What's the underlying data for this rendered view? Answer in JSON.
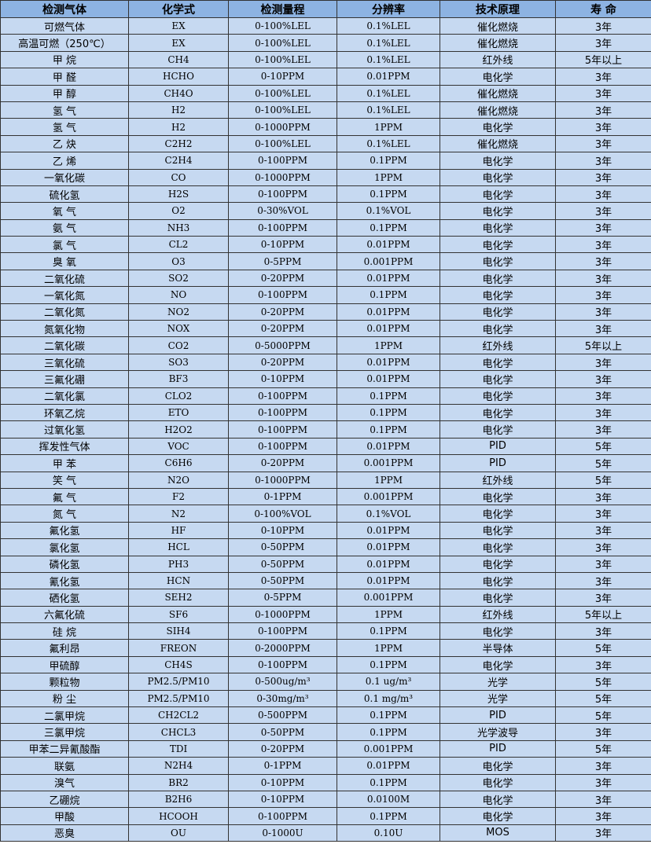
{
  "headers": [
    "检测气体",
    "化学式",
    "检测量程",
    "分辨率",
    "技术原理",
    "寿 命"
  ],
  "rows": [
    [
      "可燃气体",
      "EX",
      "0-100%LEL",
      "0.1%LEL",
      "催化燃烧",
      "3年"
    ],
    [
      "高温可燃（250℃）",
      "EX",
      "0-100%LEL",
      "0.1%LEL",
      "催化燃烧",
      "3年"
    ],
    [
      "甲 烷",
      "CH4",
      "0-100%LEL",
      "0.1%LEL",
      "红外线",
      "5年以上"
    ],
    [
      "甲 醛",
      "HCHO",
      "0-10PPM",
      "0.01PPM",
      "电化学",
      "3年"
    ],
    [
      "甲 醇",
      "CH4O",
      "0-100%LEL",
      "0.1%LEL",
      "催化燃烧",
      "3年"
    ],
    [
      "氢 气",
      "H2",
      "0-100%LEL",
      "0.1%LEL",
      "催化燃烧",
      "3年"
    ],
    [
      "氢 气",
      "H2",
      "0-1000PPM",
      "1PPM",
      "电化学",
      "3年"
    ],
    [
      "乙 炔",
      "C2H2",
      "0-100%LEL",
      "0.1%LEL",
      "催化燃烧",
      "3年"
    ],
    [
      "乙 烯",
      "C2H4",
      "0-100PPM",
      "0.1PPM",
      "电化学",
      "3年"
    ],
    [
      "一氧化碳",
      "CO",
      "0-1000PPM",
      "1PPM",
      "电化学",
      "3年"
    ],
    [
      "硫化氢",
      "H2S",
      "0-100PPM",
      "0.1PPM",
      "电化学",
      "3年"
    ],
    [
      "氧 气",
      "O2",
      "0-30%VOL",
      "0.1%VOL",
      "电化学",
      "3年"
    ],
    [
      "氨 气",
      "NH3",
      "0-100PPM",
      "0.1PPM",
      "电化学",
      "3年"
    ],
    [
      "氯 气",
      "CL2",
      "0-10PPM",
      "0.01PPM",
      "电化学",
      "3年"
    ],
    [
      "臭 氧",
      "O3",
      "0-5PPM",
      "0.001PPM",
      "电化学",
      "3年"
    ],
    [
      "二氧化硫",
      "SO2",
      "0-20PPM",
      "0.01PPM",
      "电化学",
      "3年"
    ],
    [
      "一氧化氮",
      "NO",
      "0-100PPM",
      "0.1PPM",
      "电化学",
      "3年"
    ],
    [
      "二氧化氮",
      "NO2",
      "0-20PPM",
      "0.01PPM",
      "电化学",
      "3年"
    ],
    [
      "氮氧化物",
      "NOX",
      "0-20PPM",
      "0.01PPM",
      "电化学",
      "3年"
    ],
    [
      "二氧化碳",
      "CO2",
      "0-5000PPM",
      "1PPM",
      "红外线",
      "5年以上"
    ],
    [
      "三氧化硫",
      "SO3",
      "0-20PPM",
      "0.01PPM",
      "电化学",
      "3年"
    ],
    [
      "三氟化硼",
      "BF3",
      "0-10PPM",
      "0.01PPM",
      "电化学",
      "3年"
    ],
    [
      "二氧化氯",
      "CLO2",
      "0-100PPM",
      "0.1PPM",
      "电化学",
      "3年"
    ],
    [
      "环氧乙烷",
      "ETO",
      "0-100PPM",
      "0.1PPM",
      "电化学",
      "3年"
    ],
    [
      "过氧化氢",
      "H2O2",
      "0-100PPM",
      "0.1PPM",
      "电化学",
      "3年"
    ],
    [
      "挥发性气体",
      "VOC",
      "0-100PPM",
      "0.01PPM",
      "PID",
      "5年"
    ],
    [
      "甲 苯",
      "C6H6",
      "0-20PPM",
      "0.001PPM",
      "PID",
      "5年"
    ],
    [
      "笑 气",
      "N2O",
      "0-1000PPM",
      "1PPM",
      "红外线",
      "5年"
    ],
    [
      "氟 气",
      "F2",
      "0-1PPM",
      "0.001PPM",
      "电化学",
      "3年"
    ],
    [
      "氮 气",
      "N2",
      "0-100%VOL",
      "0.1%VOL",
      "电化学",
      "3年"
    ],
    [
      "氟化氢",
      "HF",
      "0-10PPM",
      "0.01PPM",
      "电化学",
      "3年"
    ],
    [
      "氯化氢",
      "HCL",
      "0-50PPM",
      "0.01PPM",
      "电化学",
      "3年"
    ],
    [
      "磷化氢",
      "PH3",
      "0-50PPM",
      "0.01PPM",
      "电化学",
      "3年"
    ],
    [
      "氰化氢",
      "HCN",
      "0-50PPM",
      "0.01PPM",
      "电化学",
      "3年"
    ],
    [
      "硒化氢",
      "SEH2",
      "0-5PPM",
      "0.001PPM",
      "电化学",
      "3年"
    ],
    [
      "六氟化硫",
      "SF6",
      "0-1000PPM",
      "1PPM",
      "红外线",
      "5年以上"
    ],
    [
      "硅 烷",
      "SIH4",
      "0-100PPM",
      "0.1PPM",
      "电化学",
      "3年"
    ],
    [
      "氟利昂",
      "FREON",
      "0-2000PPM",
      "1PPM",
      "半导体",
      "5年"
    ],
    [
      "甲硫醇",
      "CH4S",
      "0-100PPM",
      "0.1PPM",
      "电化学",
      "3年"
    ],
    [
      "颗粒物",
      "PM2.5/PM10",
      "0-500ug/m³",
      "0.1 ug/m³",
      "光学",
      "5年"
    ],
    [
      "粉 尘",
      "PM2.5/PM10",
      "0-30mg/m³",
      "0.1 mg/m³",
      "光学",
      "5年"
    ],
    [
      "二氯甲烷",
      "CH2CL2",
      "0-500PPM",
      "0.1PPM",
      "PID",
      "5年"
    ],
    [
      "三氯甲烷",
      "CHCL3",
      "0-50PPM",
      "0.1PPM",
      "光学波导",
      "3年"
    ],
    [
      "甲苯二异氰酸酯",
      "TDI",
      "0-20PPM",
      "0.001PPM",
      "PID",
      "5年"
    ],
    [
      "联氨",
      "N2H4",
      "0-1PPM",
      "0.01PPM",
      "电化学",
      "3年"
    ],
    [
      "溴气",
      "BR2",
      "0-10PPM",
      "0.1PPM",
      "电化学",
      "3年"
    ],
    [
      "乙硼烷",
      "B2H6",
      "0-10PPM",
      "0.0100M",
      "电化学",
      "3年"
    ],
    [
      "甲酸",
      "HCOOH",
      "0-100PPM",
      "0.1PPM",
      "电化学",
      "3年"
    ],
    [
      "恶臭",
      "OU",
      "0-1000U",
      "0.10U",
      "MOS",
      "3年"
    ]
  ],
  "colors": {
    "header": "#8db3e2",
    "row": "#c6d9f1",
    "border": "#333333"
  }
}
